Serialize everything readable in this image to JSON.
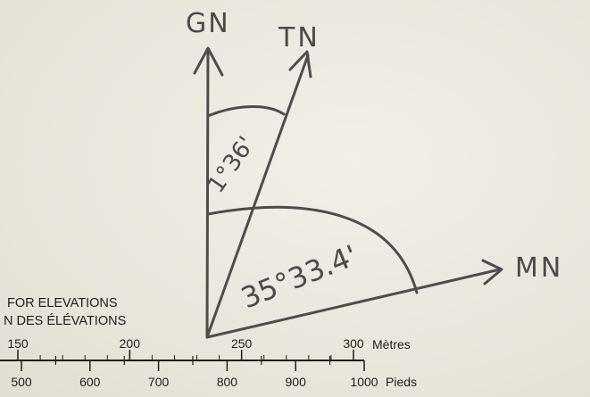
{
  "diagram": {
    "labels": {
      "grid_north": "GN",
      "true_north": "TN",
      "magnetic_north": "MN",
      "angle_gn_tn": "1°36'",
      "angle_gn_mn": "35°33.4'"
    }
  },
  "legend": {
    "line1": "FOR ELEVATIONS",
    "line2": "N DES ÉLÉVATIONS"
  },
  "scale": {
    "metres_label": "Mètres",
    "pieds_label": "Pieds",
    "metres_ticks": [
      "150",
      "200",
      "250",
      "300"
    ],
    "pieds_ticks": [
      "500",
      "600",
      "700",
      "800",
      "900",
      "1000"
    ]
  },
  "colors": {
    "pencil": "#4a4a4a",
    "ink": "#1e1e1e",
    "paper": "#ebe7de"
  }
}
